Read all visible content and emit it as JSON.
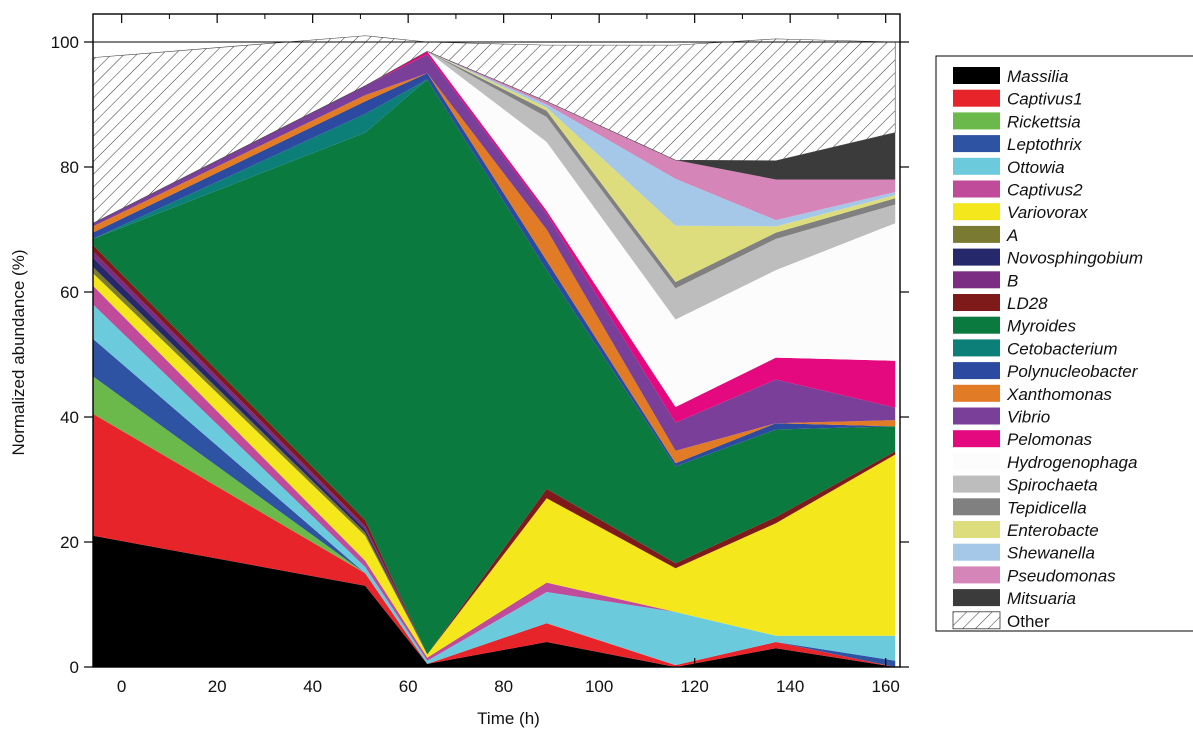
{
  "chart_data": {
    "type": "area",
    "stacked": true,
    "xlabel": "Time (h)",
    "ylabel": "Normalized abundance (%)",
    "xlim": [
      -6,
      163
    ],
    "ylim": [
      0,
      100
    ],
    "xticks": [
      0,
      20,
      40,
      60,
      80,
      100,
      120,
      140,
      160
    ],
    "yticks": [
      0,
      20,
      40,
      60,
      80,
      100
    ],
    "x": [
      -6,
      51,
      64,
      89,
      116,
      137,
      162
    ],
    "grid": false,
    "legend_position": "right",
    "series": [
      {
        "name": "Massilia",
        "color": "#000000",
        "values": [
          21.0,
          13.0,
          0.5,
          4.0,
          0.0,
          3.0,
          0.0
        ]
      },
      {
        "name": "Captivus1",
        "color": "#e8242b",
        "values": [
          19.5,
          2.0,
          0.0,
          3.0,
          0.3,
          1.0,
          0.0
        ]
      },
      {
        "name": "Rickettsia",
        "color": "#6ab94a",
        "values": [
          6.0,
          0.0,
          0.0,
          0.0,
          0.0,
          0.0,
          0.0
        ]
      },
      {
        "name": "Leptothrix",
        "color": "#2f53a3",
        "values": [
          6.0,
          0.0,
          0.0,
          0.0,
          0.0,
          0.0,
          1.0
        ]
      },
      {
        "name": "Ottowia",
        "color": "#6ccadd",
        "values": [
          5.5,
          1.0,
          0.5,
          5.0,
          8.5,
          1.0,
          4.0
        ]
      },
      {
        "name": "Captivus2",
        "color": "#c04b9a",
        "values": [
          3.0,
          1.0,
          0.5,
          1.5,
          0.0,
          0.0,
          0.0
        ]
      },
      {
        "name": "Variovorax",
        "color": "#f4e81c",
        "values": [
          2.0,
          4.0,
          0.5,
          13.5,
          7.0,
          18.0,
          29.0
        ]
      },
      {
        "name": "A",
        "color": "#7b7a33",
        "values": [
          1.0,
          0.5,
          0.0,
          0.0,
          0.0,
          0.0,
          0.0
        ]
      },
      {
        "name": "Novosphingobium",
        "color": "#25286a",
        "values": [
          1.5,
          0.5,
          0.0,
          0.0,
          0.0,
          0.0,
          0.0
        ]
      },
      {
        "name": "B",
        "color": "#7a2d82",
        "values": [
          1.0,
          0.5,
          0.0,
          0.0,
          0.0,
          0.0,
          0.0
        ]
      },
      {
        "name": "LD28",
        "color": "#7e1a1a",
        "values": [
          1.0,
          1.0,
          0.0,
          1.5,
          0.8,
          1.0,
          0.5
        ]
      },
      {
        "name": "Myroides",
        "color": "#0b7a3f",
        "values": [
          1.0,
          62.0,
          92.0,
          35.0,
          15.5,
          14.0,
          4.0
        ]
      },
      {
        "name": "Cetobacterium",
        "color": "#0c7f78",
        "values": [
          0.0,
          3.0,
          0.0,
          0.0,
          0.0,
          0.0,
          0.0
        ]
      },
      {
        "name": "Polynucleobacter",
        "color": "#2b4aa0",
        "values": [
          1.0,
          2.0,
          1.0,
          1.5,
          0.5,
          1.0,
          0.0
        ]
      },
      {
        "name": "Xanthomonas",
        "color": "#e17b26",
        "values": [
          1.0,
          1.0,
          0.0,
          5.0,
          2.0,
          0.0,
          1.0
        ]
      },
      {
        "name": "Vibrio",
        "color": "#7a3f98",
        "values": [
          0.5,
          1.5,
          3.0,
          2.5,
          4.5,
          7.0,
          2.0
        ]
      },
      {
        "name": "Pelomonas",
        "color": "#e5097f",
        "values": [
          0.0,
          0.0,
          0.5,
          0.5,
          2.5,
          3.5,
          7.5
        ]
      },
      {
        "name": "Hydrogenophaga",
        "color": "#fcfcfc",
        "values": [
          0.0,
          0.0,
          0.0,
          11.0,
          14.0,
          14.0,
          22.0
        ]
      },
      {
        "name": "Spirochaeta",
        "color": "#bdbdbd",
        "values": [
          0.0,
          0.0,
          0.0,
          4.0,
          5.0,
          5.0,
          3.0
        ]
      },
      {
        "name": "Tepidicella",
        "color": "#808080",
        "values": [
          0.0,
          0.0,
          0.0,
          1.0,
          1.0,
          1.0,
          1.0
        ]
      },
      {
        "name": "Enterobacte",
        "color": "#dedd7e",
        "values": [
          0.0,
          0.0,
          0.0,
          0.5,
          9.0,
          1.0,
          0.5
        ]
      },
      {
        "name": "Shewanella",
        "color": "#a6c8e8",
        "values": [
          0.0,
          0.0,
          0.0,
          0.5,
          7.5,
          1.0,
          0.5
        ]
      },
      {
        "name": "Pseudomonas",
        "color": "#d685b8",
        "values": [
          0.0,
          0.0,
          0.0,
          0.5,
          3.0,
          6.5,
          2.0
        ]
      },
      {
        "name": "Mitsuaria",
        "color": "#3b3b3b",
        "values": [
          0.0,
          0.0,
          0.0,
          0.0,
          0.0,
          3.0,
          7.5
        ]
      },
      {
        "name": "Other",
        "color": "hatched",
        "values": [
          26.5,
          8.0,
          1.5,
          9.0,
          18.4,
          19.5,
          14.5
        ]
      }
    ]
  }
}
